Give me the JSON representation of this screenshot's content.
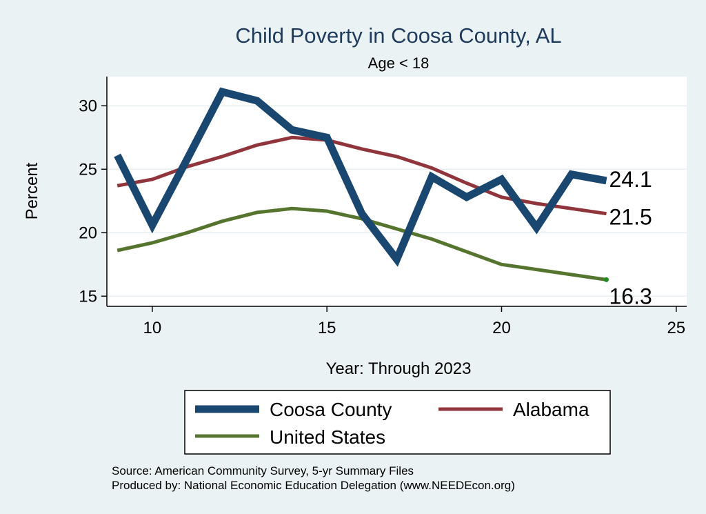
{
  "chart_data": {
    "type": "line",
    "title": "Child Poverty in Coosa County, AL",
    "subtitle": "Age < 18",
    "xlabel": "Year: Through 2023",
    "ylabel": "Percent",
    "xlim": [
      8.7,
      25.3
    ],
    "ylim": [
      14.2,
      32.3
    ],
    "xticks": [
      10,
      15,
      20,
      25
    ],
    "yticks": [
      15,
      20,
      25,
      30
    ],
    "grid": true,
    "x": [
      9,
      10,
      11,
      12,
      13,
      14,
      15,
      16,
      17,
      18,
      19,
      20,
      21,
      22,
      23
    ],
    "series": [
      {
        "name": "Coosa County",
        "color": "#1a476f",
        "values": [
          26.1,
          20.6,
          25.8,
          31.1,
          30.4,
          28.1,
          27.5,
          21.5,
          17.9,
          24.4,
          22.8,
          24.2,
          20.4,
          24.6,
          24.1
        ],
        "end_label": "24.1"
      },
      {
        "name": "Alabama",
        "color": "#90353b",
        "values": [
          23.7,
          24.2,
          25.2,
          26.0,
          26.9,
          27.5,
          27.3,
          26.6,
          26.0,
          25.1,
          23.9,
          22.8,
          22.3,
          21.9,
          21.5
        ],
        "end_label": "21.5"
      },
      {
        "name": "United States",
        "color": "#55752f",
        "values": [
          18.6,
          19.2,
          20.0,
          20.9,
          21.6,
          21.9,
          21.7,
          21.1,
          20.3,
          19.5,
          18.5,
          17.5,
          17.1,
          16.7,
          16.3
        ],
        "end_label": "16.3"
      }
    ],
    "legend": {
      "position": "bottom",
      "entries": [
        "Coosa County",
        "Alabama",
        "United States"
      ]
    },
    "notes": [
      "Source: American Community Survey, 5-yr Summary Files",
      "Produced by: National Economic Education Delegation (www.NEEDEcon.org)"
    ]
  }
}
